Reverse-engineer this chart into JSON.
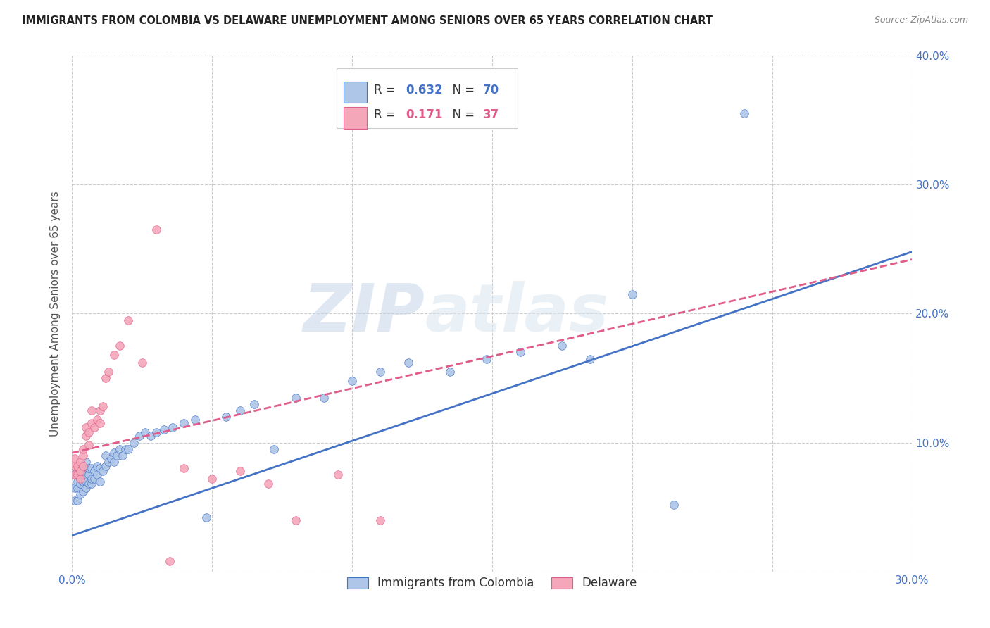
{
  "title": "IMMIGRANTS FROM COLOMBIA VS DELAWARE UNEMPLOYMENT AMONG SENIORS OVER 65 YEARS CORRELATION CHART",
  "source": "Source: ZipAtlas.com",
  "ylabel": "Unemployment Among Seniors over 65 years",
  "xlim": [
    0,
    0.3
  ],
  "ylim": [
    0,
    0.4
  ],
  "xticks": [
    0.0,
    0.05,
    0.1,
    0.15,
    0.2,
    0.25,
    0.3
  ],
  "yticks": [
    0.0,
    0.1,
    0.2,
    0.3,
    0.4
  ],
  "legend_label1": "Immigrants from Colombia",
  "legend_label2": "Delaware",
  "R1": 0.632,
  "N1": 70,
  "R2": 0.171,
  "N2": 37,
  "color1": "#aec6e8",
  "color2": "#f4a7b9",
  "line_color1": "#4472c4",
  "line_color2": "#e05c8a",
  "watermark_zip": "ZIP",
  "watermark_atlas": "atlas",
  "background_color": "#ffffff",
  "scatter1_x": [
    0.001,
    0.001,
    0.001,
    0.002,
    0.002,
    0.002,
    0.002,
    0.003,
    0.003,
    0.003,
    0.003,
    0.004,
    0.004,
    0.004,
    0.004,
    0.005,
    0.005,
    0.005,
    0.005,
    0.006,
    0.006,
    0.006,
    0.007,
    0.007,
    0.007,
    0.008,
    0.008,
    0.009,
    0.009,
    0.01,
    0.01,
    0.011,
    0.012,
    0.012,
    0.013,
    0.014,
    0.015,
    0.015,
    0.016,
    0.017,
    0.018,
    0.019,
    0.02,
    0.022,
    0.024,
    0.026,
    0.028,
    0.03,
    0.033,
    0.036,
    0.04,
    0.044,
    0.048,
    0.055,
    0.06,
    0.065,
    0.072,
    0.08,
    0.09,
    0.1,
    0.11,
    0.12,
    0.135,
    0.148,
    0.16,
    0.175,
    0.185,
    0.2,
    0.215,
    0.24
  ],
  "scatter1_y": [
    0.055,
    0.065,
    0.075,
    0.055,
    0.065,
    0.07,
    0.078,
    0.06,
    0.068,
    0.072,
    0.08,
    0.062,
    0.07,
    0.075,
    0.082,
    0.065,
    0.07,
    0.075,
    0.085,
    0.068,
    0.075,
    0.08,
    0.068,
    0.072,
    0.08,
    0.072,
    0.078,
    0.075,
    0.082,
    0.07,
    0.08,
    0.078,
    0.082,
    0.09,
    0.085,
    0.088,
    0.085,
    0.092,
    0.09,
    0.095,
    0.09,
    0.095,
    0.095,
    0.1,
    0.105,
    0.108,
    0.105,
    0.108,
    0.11,
    0.112,
    0.115,
    0.118,
    0.042,
    0.12,
    0.125,
    0.13,
    0.095,
    0.135,
    0.135,
    0.148,
    0.155,
    0.162,
    0.155,
    0.165,
    0.17,
    0.175,
    0.165,
    0.215,
    0.052,
    0.355
  ],
  "scatter2_x": [
    0.001,
    0.001,
    0.001,
    0.002,
    0.002,
    0.003,
    0.003,
    0.003,
    0.004,
    0.004,
    0.004,
    0.005,
    0.005,
    0.006,
    0.006,
    0.007,
    0.007,
    0.008,
    0.009,
    0.01,
    0.01,
    0.011,
    0.012,
    0.013,
    0.015,
    0.017,
    0.02,
    0.025,
    0.03,
    0.035,
    0.04,
    0.05,
    0.06,
    0.07,
    0.08,
    0.095,
    0.11
  ],
  "scatter2_y": [
    0.075,
    0.082,
    0.088,
    0.075,
    0.082,
    0.072,
    0.078,
    0.085,
    0.082,
    0.09,
    0.095,
    0.105,
    0.112,
    0.098,
    0.108,
    0.115,
    0.125,
    0.112,
    0.118,
    0.115,
    0.125,
    0.128,
    0.15,
    0.155,
    0.168,
    0.175,
    0.195,
    0.162,
    0.265,
    0.008,
    0.08,
    0.072,
    0.078,
    0.068,
    0.04,
    0.075,
    0.04
  ],
  "line1_x0": 0.0,
  "line1_x1": 0.3,
  "line1_y0": 0.028,
  "line1_y1": 0.248,
  "line2_x0": 0.0,
  "line2_x1": 0.3,
  "line2_y0": 0.092,
  "line2_y1": 0.242
}
